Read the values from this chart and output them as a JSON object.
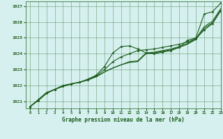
{
  "title": "Graphe pression niveau de la mer (hPa)",
  "background_color": "#d6f0ef",
  "plot_bg_color": "#d6f0ef",
  "grid_color": "#3a7a3a",
  "line_color": "#1a5c1a",
  "xlim": [
    -0.5,
    23
  ],
  "ylim": [
    1020.55,
    1027.3
  ],
  "yticks": [
    1021,
    1022,
    1023,
    1024,
    1025,
    1026,
    1027
  ],
  "xticks": [
    0,
    1,
    2,
    3,
    4,
    5,
    6,
    7,
    8,
    9,
    10,
    11,
    12,
    13,
    14,
    15,
    16,
    17,
    18,
    19,
    20,
    21,
    22,
    23
  ],
  "series": [
    {
      "y": [
        1020.65,
        1021.1,
        1021.55,
        1021.75,
        1022.0,
        1022.1,
        1022.2,
        1022.4,
        1022.65,
        1023.2,
        1024.05,
        1024.45,
        1024.5,
        1024.3,
        1024.05,
        1024.0,
        1024.1,
        1024.2,
        1024.4,
        1024.85,
        1025.0,
        1026.5,
        1026.65,
        1027.2
      ],
      "marker": true,
      "linewidth": 0.8
    },
    {
      "y": [
        1020.65,
        1021.05,
        1021.5,
        1021.75,
        1021.95,
        1022.1,
        1022.2,
        1022.35,
        1022.55,
        1022.85,
        1023.1,
        1023.3,
        1023.5,
        1023.55,
        1024.05,
        1024.1,
        1024.2,
        1024.3,
        1024.45,
        1024.65,
        1024.95,
        1025.7,
        1026.05,
        1026.85
      ],
      "marker": false,
      "linewidth": 0.8
    },
    {
      "y": [
        1020.65,
        1021.05,
        1021.5,
        1021.75,
        1021.95,
        1022.1,
        1022.2,
        1022.35,
        1022.55,
        1022.85,
        1023.1,
        1023.3,
        1023.45,
        1023.5,
        1024.0,
        1024.05,
        1024.15,
        1024.25,
        1024.4,
        1024.6,
        1024.9,
        1025.6,
        1025.95,
        1026.75
      ],
      "marker": false,
      "linewidth": 0.8
    },
    {
      "y": [
        1020.65,
        1021.05,
        1021.5,
        1021.75,
        1021.95,
        1022.1,
        1022.2,
        1022.35,
        1022.6,
        1023.0,
        1023.5,
        1023.8,
        1024.0,
        1024.2,
        1024.25,
        1024.3,
        1024.4,
        1024.5,
        1024.6,
        1024.75,
        1024.95,
        1025.5,
        1025.9,
        1026.7
      ],
      "marker": true,
      "linewidth": 0.8
    }
  ]
}
